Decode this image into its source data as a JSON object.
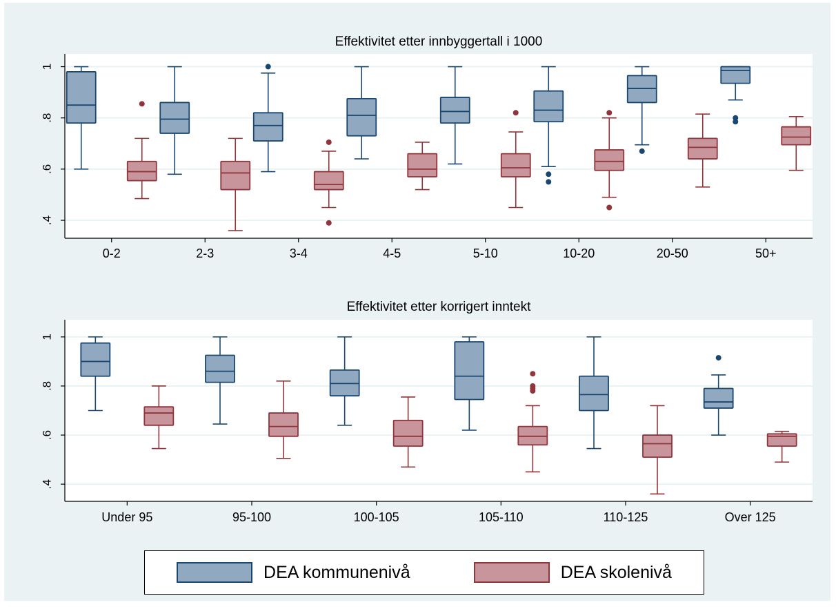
{
  "colors": {
    "background": "#eaf2f3",
    "plot_background": "#ffffff",
    "grid": "#eaf2f3",
    "series1_fill": "#90a8c0",
    "series1_line": "#1a476f",
    "series2_fill": "#c7959b",
    "series2_line": "#90353b"
  },
  "legend": {
    "items": [
      {
        "label": "DEA kommunenivå",
        "fill": "#90a8c0",
        "line": "#1a476f"
      },
      {
        "label": "DEA skolenivå",
        "fill": "#c7959b",
        "line": "#90353b"
      }
    ]
  },
  "chart_data": [
    {
      "type": "box",
      "title": "Effektivitet etter innbyggertall i 1000",
      "xlabel": "",
      "ylabel": "",
      "ylim": [
        0.33,
        1.05
      ],
      "yticks": [
        0.4,
        0.6,
        0.8,
        1
      ],
      "ytick_labels": [
        ".4",
        ".6",
        ".8",
        "1"
      ],
      "grid": true,
      "categories": [
        "0-2",
        "2-3",
        "3-4",
        "4-5",
        "5-10",
        "10-20",
        "20-50",
        "50+"
      ],
      "series": [
        {
          "name": "DEA kommunenivå",
          "boxes": [
            {
              "low": 0.6,
              "q1": 0.78,
              "median": 0.85,
              "q3": 0.98,
              "high": 1.0,
              "outliers": []
            },
            {
              "low": 0.58,
              "q1": 0.74,
              "median": 0.795,
              "q3": 0.86,
              "high": 1.0,
              "outliers": []
            },
            {
              "low": 0.59,
              "q1": 0.71,
              "median": 0.77,
              "q3": 0.82,
              "high": 0.975,
              "outliers": [
                1.0
              ]
            },
            {
              "low": 0.64,
              "q1": 0.73,
              "median": 0.81,
              "q3": 0.875,
              "high": 1.0,
              "outliers": []
            },
            {
              "low": 0.62,
              "q1": 0.78,
              "median": 0.825,
              "q3": 0.88,
              "high": 1.0,
              "outliers": []
            },
            {
              "low": 0.61,
              "q1": 0.785,
              "median": 0.83,
              "q3": 0.905,
              "high": 1.0,
              "outliers": [
                0.58,
                0.55
              ]
            },
            {
              "low": 0.695,
              "q1": 0.86,
              "median": 0.915,
              "q3": 0.965,
              "high": 1.0,
              "outliers": [
                0.67
              ]
            },
            {
              "low": 0.87,
              "q1": 0.935,
              "median": 0.985,
              "q3": 1.0,
              "high": 1.0,
              "outliers": [
                0.8,
                0.785
              ]
            }
          ]
        },
        {
          "name": "DEA skolenivå",
          "boxes": [
            {
              "low": 0.485,
              "q1": 0.555,
              "median": 0.59,
              "q3": 0.63,
              "high": 0.72,
              "outliers": [
                0.855
              ]
            },
            {
              "low": 0.36,
              "q1": 0.52,
              "median": 0.585,
              "q3": 0.63,
              "high": 0.72,
              "outliers": []
            },
            {
              "low": 0.45,
              "q1": 0.52,
              "median": 0.54,
              "q3": 0.59,
              "high": 0.67,
              "outliers": [
                0.705,
                0.39
              ]
            },
            {
              "low": 0.52,
              "q1": 0.57,
              "median": 0.6,
              "q3": 0.66,
              "high": 0.705,
              "outliers": []
            },
            {
              "low": 0.45,
              "q1": 0.57,
              "median": 0.605,
              "q3": 0.66,
              "high": 0.745,
              "outliers": [
                0.82
              ]
            },
            {
              "low": 0.49,
              "q1": 0.595,
              "median": 0.63,
              "q3": 0.675,
              "high": 0.8,
              "outliers": [
                0.82,
                0.45
              ]
            },
            {
              "low": 0.53,
              "q1": 0.64,
              "median": 0.685,
              "q3": 0.72,
              "high": 0.815,
              "outliers": []
            },
            {
              "low": 0.595,
              "q1": 0.695,
              "median": 0.725,
              "q3": 0.765,
              "high": 0.805,
              "outliers": []
            }
          ]
        }
      ]
    },
    {
      "type": "box",
      "title": "Effektivitet etter korrigert inntekt",
      "xlabel": "",
      "ylabel": "",
      "ylim": [
        0.33,
        1.07
      ],
      "yticks": [
        0.4,
        0.6,
        0.8,
        1
      ],
      "ytick_labels": [
        ".4",
        ".6",
        ".8",
        "1"
      ],
      "grid": true,
      "categories": [
        "Under 95",
        "95-100",
        "100-105",
        "105-110",
        "110-125",
        "Over 125"
      ],
      "series": [
        {
          "name": "DEA kommunenivå",
          "boxes": [
            {
              "low": 0.7,
              "q1": 0.84,
              "median": 0.9,
              "q3": 0.975,
              "high": 1.0,
              "outliers": []
            },
            {
              "low": 0.645,
              "q1": 0.815,
              "median": 0.86,
              "q3": 0.925,
              "high": 1.0,
              "outliers": []
            },
            {
              "low": 0.64,
              "q1": 0.76,
              "median": 0.81,
              "q3": 0.865,
              "high": 1.0,
              "outliers": []
            },
            {
              "low": 0.62,
              "q1": 0.745,
              "median": 0.84,
              "q3": 0.98,
              "high": 1.0,
              "outliers": []
            },
            {
              "low": 0.545,
              "q1": 0.7,
              "median": 0.765,
              "q3": 0.84,
              "high": 1.0,
              "outliers": []
            },
            {
              "low": 0.6,
              "q1": 0.71,
              "median": 0.735,
              "q3": 0.79,
              "high": 0.845,
              "outliers": [
                0.915
              ]
            }
          ]
        },
        {
          "name": "DEA skolenivå",
          "boxes": [
            {
              "low": 0.545,
              "q1": 0.64,
              "median": 0.69,
              "q3": 0.715,
              "high": 0.8,
              "outliers": []
            },
            {
              "low": 0.505,
              "q1": 0.595,
              "median": 0.635,
              "q3": 0.69,
              "high": 0.82,
              "outliers": []
            },
            {
              "low": 0.47,
              "q1": 0.555,
              "median": 0.595,
              "q3": 0.66,
              "high": 0.755,
              "outliers": []
            },
            {
              "low": 0.45,
              "q1": 0.56,
              "median": 0.595,
              "q3": 0.635,
              "high": 0.72,
              "outliers": [
                0.85,
                0.8,
                0.79,
                0.78
              ]
            },
            {
              "low": 0.36,
              "q1": 0.51,
              "median": 0.565,
              "q3": 0.6,
              "high": 0.72,
              "outliers": []
            },
            {
              "low": 0.49,
              "q1": 0.555,
              "median": 0.595,
              "q3": 0.605,
              "high": 0.615,
              "outliers": []
            }
          ]
        }
      ]
    }
  ]
}
